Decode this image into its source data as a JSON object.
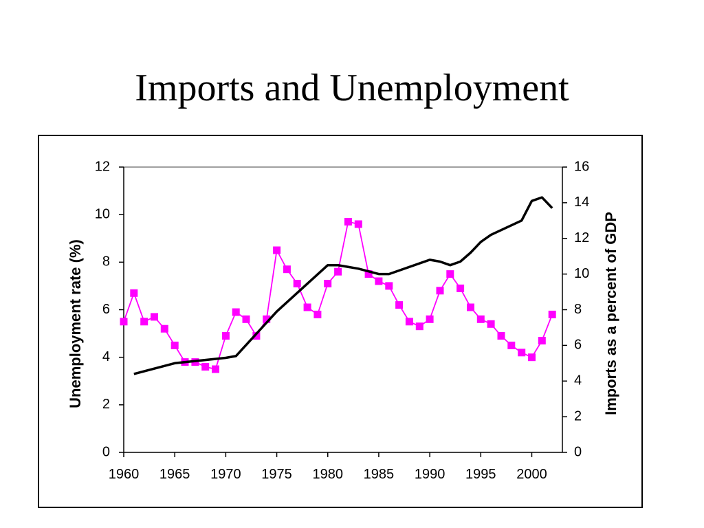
{
  "slide": {
    "title": "Imports and Unemployment"
  },
  "chart_data": {
    "type": "line",
    "title": "Imports and Unemployment",
    "xlabel": "",
    "ylabel_left": "Unemployment rate (%)",
    "ylabel_right": "Imports as a percent of GDP",
    "xlim": [
      1960,
      2003
    ],
    "ylim_left": [
      0,
      12
    ],
    "ylim_right": [
      0,
      16
    ],
    "x_ticks": [
      1960,
      1965,
      1970,
      1975,
      1980,
      1985,
      1990,
      1995,
      2000
    ],
    "y_ticks_left": [
      0,
      2,
      4,
      6,
      8,
      10,
      12
    ],
    "y_ticks_right": [
      0,
      2,
      4,
      6,
      8,
      10,
      12,
      14,
      16
    ],
    "grid": false,
    "legend": "none",
    "series": [
      {
        "axis": "left",
        "color": "#ff00ff",
        "marker": "square",
        "x": [
          1960,
          1961,
          1962,
          1963,
          1964,
          1965,
          1966,
          1967,
          1968,
          1969,
          1970,
          1971,
          1972,
          1973,
          1974,
          1975,
          1976,
          1977,
          1978,
          1979,
          1980,
          1981,
          1982,
          1983,
          1984,
          1985,
          1986,
          1987,
          1988,
          1989,
          1990,
          1991,
          1992,
          1993,
          1994,
          1995,
          1996,
          1997,
          1998,
          1999,
          2000,
          2001,
          2002
        ],
        "values": [
          5.5,
          6.7,
          5.5,
          5.7,
          5.2,
          4.5,
          3.8,
          3.8,
          3.6,
          3.5,
          4.9,
          5.9,
          5.6,
          4.9,
          5.6,
          8.5,
          7.7,
          7.1,
          6.1,
          5.8,
          7.1,
          7.6,
          9.7,
          9.6,
          7.5,
          7.2,
          7.0,
          6.2,
          5.5,
          5.3,
          5.6,
          6.8,
          7.5,
          6.9,
          6.1,
          5.6,
          5.4,
          4.9,
          4.5,
          4.2,
          4.0,
          4.7,
          5.8
        ]
      },
      {
        "axis": "right",
        "color": "#000000",
        "marker": "none",
        "x": [
          1961,
          1965,
          1970,
          1971,
          1975,
          1980,
          1981,
          1983,
          1985,
          1986,
          1990,
          1991,
          1992,
          1993,
          1994,
          1995,
          1996,
          1999,
          2000,
          2001,
          2002
        ],
        "values": [
          4.4,
          5.0,
          5.3,
          5.4,
          7.9,
          10.5,
          10.5,
          10.3,
          10.0,
          10.0,
          10.8,
          10.7,
          10.5,
          10.7,
          11.2,
          11.8,
          12.2,
          13.0,
          14.1,
          14.3,
          13.7
        ]
      }
    ]
  }
}
